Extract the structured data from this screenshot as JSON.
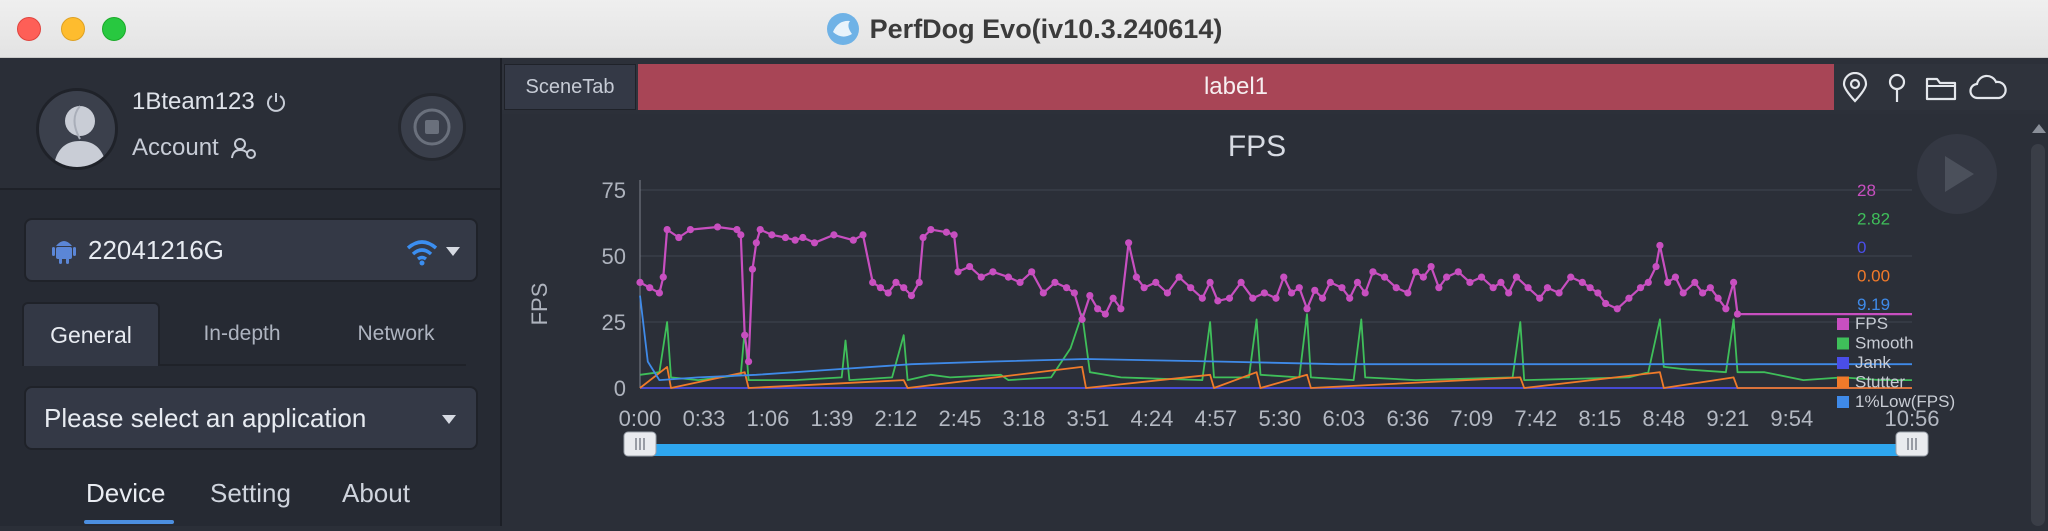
{
  "window": {
    "title": "PerfDog Evo(iv10.3.240614)"
  },
  "profile": {
    "username": "1Bteam123",
    "account_label": "Account"
  },
  "device": {
    "name": "22041216G"
  },
  "tabs": [
    {
      "label": "General",
      "active": true
    },
    {
      "label": "In-depth",
      "active": false
    },
    {
      "label": "Network",
      "active": false
    }
  ],
  "app_select": {
    "placeholder": "Please select an application"
  },
  "bottom_nav": [
    {
      "label": "Device",
      "active": true
    },
    {
      "label": "Setting",
      "active": false
    },
    {
      "label": "About",
      "active": false
    }
  ],
  "scene_tab": {
    "label": "SceneTab"
  },
  "active_label": "label1",
  "chart_data": {
    "type": "line",
    "title": "FPS",
    "ylabel": "FPS",
    "ylim": [
      0,
      75
    ],
    "yticks": [
      0,
      25,
      50,
      75
    ],
    "xlim": [
      0,
      656
    ],
    "xtick_labels": [
      "0:00",
      "0:33",
      "1:06",
      "1:39",
      "2:12",
      "2:45",
      "3:18",
      "3:51",
      "4:24",
      "4:57",
      "5:30",
      "6:03",
      "6:36",
      "7:09",
      "7:42",
      "8:15",
      "8:48",
      "9:21",
      "9:54",
      "10:56"
    ],
    "xtick_seconds": [
      0,
      33,
      66,
      99,
      132,
      165,
      198,
      231,
      264,
      297,
      330,
      363,
      396,
      429,
      462,
      495,
      528,
      561,
      594,
      656
    ],
    "legend_position": "right",
    "series": [
      {
        "name": "FPS",
        "color": "#c84fc0",
        "current": "28",
        "points": [
          [
            0,
            40
          ],
          [
            5,
            38
          ],
          [
            10,
            36
          ],
          [
            12,
            42
          ],
          [
            14,
            60
          ],
          [
            20,
            57
          ],
          [
            26,
            60
          ],
          [
            40,
            61
          ],
          [
            50,
            60
          ],
          [
            52,
            58
          ],
          [
            54,
            20
          ],
          [
            56,
            10
          ],
          [
            58,
            45
          ],
          [
            60,
            55
          ],
          [
            62,
            60
          ],
          [
            68,
            58
          ],
          [
            75,
            57
          ],
          [
            80,
            56
          ],
          [
            84,
            57
          ],
          [
            90,
            55
          ],
          [
            100,
            58
          ],
          [
            110,
            56
          ],
          [
            115,
            58
          ],
          [
            120,
            40
          ],
          [
            124,
            38
          ],
          [
            128,
            36
          ],
          [
            132,
            40
          ],
          [
            136,
            38
          ],
          [
            140,
            35
          ],
          [
            144,
            40
          ],
          [
            146,
            57
          ],
          [
            150,
            60
          ],
          [
            158,
            59
          ],
          [
            162,
            58
          ],
          [
            164,
            44
          ],
          [
            170,
            46
          ],
          [
            176,
            42
          ],
          [
            182,
            44
          ],
          [
            190,
            42
          ],
          [
            196,
            40
          ],
          [
            202,
            44
          ],
          [
            208,
            36
          ],
          [
            214,
            40
          ],
          [
            220,
            38
          ],
          [
            224,
            36
          ],
          [
            228,
            26
          ],
          [
            232,
            35
          ],
          [
            236,
            30
          ],
          [
            240,
            28
          ],
          [
            244,
            34
          ],
          [
            248,
            30
          ],
          [
            252,
            55
          ],
          [
            256,
            42
          ],
          [
            260,
            38
          ],
          [
            266,
            40
          ],
          [
            272,
            36
          ],
          [
            278,
            42
          ],
          [
            284,
            38
          ],
          [
            290,
            34
          ],
          [
            294,
            40
          ],
          [
            298,
            33
          ],
          [
            304,
            34
          ],
          [
            310,
            40
          ],
          [
            316,
            34
          ],
          [
            322,
            36
          ],
          [
            328,
            34
          ],
          [
            332,
            42
          ],
          [
            336,
            36
          ],
          [
            340,
            38
          ],
          [
            344,
            30
          ],
          [
            348,
            37
          ],
          [
            352,
            34
          ],
          [
            356,
            40
          ],
          [
            362,
            38
          ],
          [
            366,
            34
          ],
          [
            370,
            40
          ],
          [
            374,
            36
          ],
          [
            378,
            44
          ],
          [
            384,
            42
          ],
          [
            390,
            38
          ],
          [
            396,
            36
          ],
          [
            400,
            44
          ],
          [
            404,
            42
          ],
          [
            408,
            46
          ],
          [
            412,
            38
          ],
          [
            416,
            42
          ],
          [
            422,
            44
          ],
          [
            428,
            40
          ],
          [
            434,
            42
          ],
          [
            440,
            38
          ],
          [
            444,
            40
          ],
          [
            448,
            36
          ],
          [
            452,
            42
          ],
          [
            458,
            38
          ],
          [
            464,
            34
          ],
          [
            468,
            38
          ],
          [
            474,
            36
          ],
          [
            480,
            42
          ],
          [
            486,
            40
          ],
          [
            490,
            38
          ],
          [
            494,
            36
          ],
          [
            498,
            32
          ],
          [
            504,
            30
          ],
          [
            510,
            34
          ],
          [
            516,
            38
          ],
          [
            520,
            40
          ],
          [
            524,
            46
          ],
          [
            526,
            54
          ],
          [
            530,
            40
          ],
          [
            534,
            42
          ],
          [
            538,
            36
          ],
          [
            544,
            40
          ],
          [
            548,
            36
          ],
          [
            552,
            38
          ],
          [
            556,
            34
          ],
          [
            560,
            30
          ],
          [
            564,
            40
          ],
          [
            566,
            28
          ],
          [
            572,
            28
          ],
          [
            580,
            28
          ],
          [
            600,
            28
          ],
          [
            620,
            28
          ],
          [
            640,
            28
          ],
          [
            656,
            28
          ]
        ]
      },
      {
        "name": "Smooth",
        "color": "#3fbf5a",
        "current": "2.82",
        "points": [
          [
            0,
            5
          ],
          [
            10,
            6
          ],
          [
            14,
            25
          ],
          [
            16,
            4
          ],
          [
            30,
            3
          ],
          [
            52,
            5
          ],
          [
            54,
            22
          ],
          [
            56,
            3
          ],
          [
            80,
            3
          ],
          [
            104,
            4
          ],
          [
            106,
            18
          ],
          [
            108,
            3
          ],
          [
            130,
            4
          ],
          [
            136,
            20
          ],
          [
            138,
            3
          ],
          [
            150,
            5
          ],
          [
            160,
            4
          ],
          [
            186,
            5
          ],
          [
            190,
            3
          ],
          [
            212,
            4
          ],
          [
            222,
            15
          ],
          [
            228,
            28
          ],
          [
            232,
            6
          ],
          [
            248,
            4
          ],
          [
            290,
            3
          ],
          [
            294,
            25
          ],
          [
            296,
            4
          ],
          [
            314,
            4
          ],
          [
            318,
            26
          ],
          [
            320,
            5
          ],
          [
            340,
            4
          ],
          [
            344,
            28
          ],
          [
            346,
            4
          ],
          [
            368,
            3
          ],
          [
            372,
            26
          ],
          [
            374,
            4
          ],
          [
            400,
            3
          ],
          [
            450,
            4
          ],
          [
            454,
            25
          ],
          [
            456,
            3
          ],
          [
            510,
            4
          ],
          [
            520,
            6
          ],
          [
            526,
            26
          ],
          [
            528,
            8
          ],
          [
            540,
            7
          ],
          [
            560,
            6
          ],
          [
            564,
            26
          ],
          [
            566,
            6
          ],
          [
            580,
            6
          ],
          [
            600,
            3
          ],
          [
            620,
            4
          ],
          [
            640,
            3
          ],
          [
            656,
            3
          ]
        ]
      },
      {
        "name": "Jank",
        "color": "#4a4ee8",
        "current": "0",
        "points": [
          [
            0,
            0
          ],
          [
            656,
            0
          ]
        ]
      },
      {
        "name": "Stutter",
        "color": "#f07a2a",
        "current": "0.00",
        "points": [
          [
            0,
            0
          ],
          [
            14,
            8
          ],
          [
            16,
            0
          ],
          [
            54,
            6
          ],
          [
            56,
            0
          ],
          [
            136,
            3
          ],
          [
            138,
            0
          ],
          [
            228,
            8
          ],
          [
            230,
            0
          ],
          [
            294,
            5
          ],
          [
            296,
            0
          ],
          [
            318,
            6
          ],
          [
            320,
            0
          ],
          [
            344,
            5
          ],
          [
            346,
            0
          ],
          [
            454,
            4
          ],
          [
            456,
            0
          ],
          [
            526,
            6
          ],
          [
            528,
            0
          ],
          [
            564,
            4
          ],
          [
            566,
            0
          ],
          [
            656,
            0
          ]
        ]
      },
      {
        "name": "1%Low(FPS)",
        "color": "#3f8ae8",
        "current": "9.19",
        "points": [
          [
            0,
            35
          ],
          [
            4,
            10
          ],
          [
            10,
            3
          ],
          [
            30,
            4
          ],
          [
            60,
            5
          ],
          [
            100,
            7
          ],
          [
            140,
            9
          ],
          [
            180,
            10
          ],
          [
            230,
            11
          ],
          [
            300,
            10
          ],
          [
            360,
            9
          ],
          [
            420,
            9
          ],
          [
            480,
            9
          ],
          [
            540,
            9
          ],
          [
            600,
            9
          ],
          [
            656,
            9
          ]
        ]
      }
    ],
    "range_slider": {
      "start": 0,
      "end": 1
    }
  },
  "icons": [
    "app-logo-icon",
    "power-icon",
    "user-settings-icon",
    "stop-icon",
    "android-icon",
    "wifi-icon",
    "location-icon",
    "pin-icon",
    "folder-icon",
    "cloud-icon",
    "play-icon"
  ]
}
